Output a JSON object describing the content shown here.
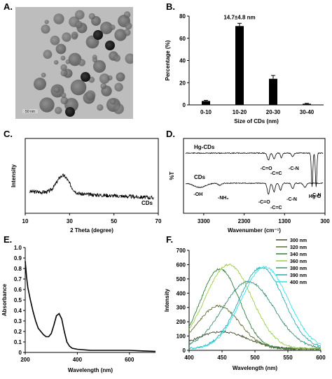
{
  "panels": {
    "a": "A.",
    "b": "B.",
    "c": "C.",
    "d": "D.",
    "e": "E.",
    "f": "F."
  },
  "tem_image": {
    "scale_bar_label": "50 nm"
  },
  "chart_data": [
    {
      "id": "B",
      "type": "bar",
      "categories": [
        "0-10",
        "10-20",
        "20-30",
        "30-40"
      ],
      "values": [
        3.5,
        71,
        23.5,
        1
      ],
      "errors": [
        0.6,
        2.5,
        3.0,
        0.4
      ],
      "annotation": "14.7±4.8 nm",
      "xlabel": "Size of CDs (nm)",
      "ylabel": "Percentage (%)",
      "ylim": [
        0,
        80
      ],
      "yticks": [
        "0",
        "20",
        "40",
        "60",
        "80"
      ],
      "colors": {
        "bar": "#000000"
      }
    },
    {
      "id": "C",
      "type": "line",
      "xlabel": "2 Theta (degree)",
      "ylabel": "Intensity",
      "xlim": [
        10,
        70
      ],
      "xticks": [
        "10",
        "30",
        "50",
        "70"
      ],
      "peak_x": 27,
      "series": [
        {
          "name": "CDs"
        }
      ]
    },
    {
      "id": "D",
      "type": "line",
      "xlabel": "Wavenumber (cm⁻¹)",
      "ylabel": "%T",
      "xticks": [
        "3300",
        "2300",
        "1300",
        "300"
      ],
      "series": [
        {
          "name": "Hg-CDs",
          "bands": [
            "-C=O",
            "-C=C",
            "-C-N",
            "Hg-O"
          ]
        },
        {
          "name": "CDs",
          "bands": [
            "-OH",
            "-NH₂",
            "-C=O",
            "-C=C",
            "-C-N",
            "-C-N"
          ]
        }
      ]
    },
    {
      "id": "E",
      "type": "line",
      "xlabel": "Wavelength (nm)",
      "ylabel": "Absorbance",
      "xlim": [
        200,
        700
      ],
      "ylim": [
        0,
        1.0
      ],
      "xticks": [
        "200",
        "400",
        "600"
      ],
      "yticks": [
        "0",
        "0.1",
        "0.2",
        "0.3",
        "0.4",
        "0.5",
        "0.6",
        "0.7",
        "0.8",
        "0.9",
        "1.0"
      ],
      "x": [
        200,
        205,
        210,
        220,
        230,
        240,
        250,
        260,
        270,
        280,
        290,
        300,
        310,
        320,
        330,
        340,
        350,
        360,
        370,
        380,
        400,
        450,
        500,
        550,
        600,
        650,
        700
      ],
      "y": [
        0.87,
        0.72,
        0.62,
        0.5,
        0.39,
        0.3,
        0.23,
        0.2,
        0.17,
        0.15,
        0.15,
        0.18,
        0.26,
        0.35,
        0.37,
        0.32,
        0.2,
        0.1,
        0.06,
        0.04,
        0.03,
        0.02,
        0.02,
        0.02,
        0.02,
        0.015,
        0.01
      ]
    },
    {
      "id": "F",
      "type": "line",
      "xlabel": "Wavelength (nm)",
      "ylabel": "Intensity",
      "xlim": [
        400,
        600
      ],
      "ylim": [
        0,
        700
      ],
      "xticks": [
        "400",
        "450",
        "500",
        "550",
        "600"
      ],
      "yticks": [
        "0",
        "100",
        "200",
        "300",
        "400",
        "500",
        "600",
        "700"
      ],
      "series": [
        {
          "name": "300 nm",
          "color": "#3d4a2a",
          "peak": 120,
          "center": 450,
          "width": 55
        },
        {
          "name": "320 nm",
          "color": "#5e6b34",
          "peak": 300,
          "center": 445,
          "width": 45
        },
        {
          "name": "340 nm",
          "color": "#2f7d3a",
          "peak": 560,
          "center": 447,
          "width": 42
        },
        {
          "name": "360 nm",
          "color": "#9ccd45",
          "peak": 590,
          "center": 460,
          "width": 50
        },
        {
          "name": "380 nm",
          "color": "#3c8a78",
          "peak": 470,
          "center": 490,
          "width": 55
        },
        {
          "name": "390 nm",
          "color": "#2ba7b5",
          "peak": 570,
          "center": 510,
          "width": 48
        },
        {
          "name": "400 nm",
          "color": "#31e3e6",
          "peak": 575,
          "center": 515,
          "width": 50
        }
      ]
    }
  ]
}
